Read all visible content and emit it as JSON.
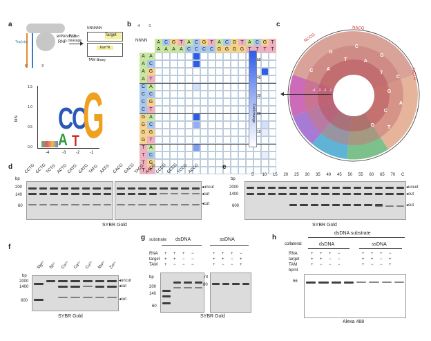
{
  "panels": {
    "a": "a",
    "b": "b",
    "c": "c",
    "d": "d",
    "e": "e",
    "f": "f",
    "g": "g",
    "h": "h"
  },
  "panel_a": {
    "labels": [
      "Trip(sta)",
      "enNovFz3",
      "RNP",
      "in vitro",
      "cleavage",
      "NNNNNN",
      "Target",
      "Kan^R",
      "TAM library",
      "5'",
      "3'"
    ],
    "logo_ylabel": "bits",
    "logo_positions": [
      "-4",
      "-3",
      "-2",
      "-1"
    ],
    "logo_letters": [
      "C",
      "C",
      "G",
      "A",
      "T"
    ],
    "yticks": [
      "0.0",
      "0.5",
      "1.0",
      "1.5"
    ]
  },
  "panel_b": {
    "minus_labels": [
      "-4",
      "-1"
    ],
    "nnnn": "NNNN",
    "top_row1": [
      "A",
      "C",
      "G",
      "T",
      "A",
      "C",
      "G",
      "T",
      "A",
      "C",
      "G",
      "T",
      "A",
      "C",
      "G",
      "T"
    ],
    "top_row2": [
      "A",
      "A",
      "A",
      "A",
      "C",
      "C",
      "C",
      "C",
      "G",
      "G",
      "G",
      "G",
      "T",
      "T",
      "T",
      "T"
    ],
    "left_col1": [
      "A",
      "A",
      "A",
      "A",
      "C",
      "C",
      "C",
      "C",
      "G",
      "G",
      "G",
      "G",
      "T",
      "T",
      "T",
      "T"
    ],
    "left_col2": [
      "A",
      "C",
      "G",
      "T",
      "A",
      "C",
      "G",
      "T",
      "A",
      "C",
      "G",
      "T",
      "A",
      "C",
      "G",
      "T"
    ],
    "colorbar_label": "Fold change",
    "colorbar_ticks": [
      "50",
      "40",
      "30",
      "20",
      "10"
    ]
  },
  "panel_c": {
    "outer_labels": [
      "NCCG",
      "NACG",
      "NCTG"
    ],
    "ring_letters": [
      "C",
      "A",
      "G",
      "T",
      "C",
      "A",
      "G",
      "T",
      "C",
      "G",
      "A",
      "C",
      "T",
      "G"
    ],
    "minus_labels": [
      "-4",
      "-3",
      "-2",
      "-1"
    ]
  },
  "panel_d": {
    "lanes_left": [
      "CCTG",
      "GCTG",
      "TCTG",
      "ACTG",
      "CATG",
      "GATG",
      "TATG",
      "AATG"
    ],
    "lanes_right": [
      "CACG",
      "GACG",
      "TACG",
      "AACG",
      "CCCG",
      "GCCG",
      "TCCG",
      "ACCG"
    ],
    "bp_label": "bp",
    "ladder": [
      "200",
      "140",
      "60"
    ],
    "right_labels": [
      "uncut",
      "cut",
      "cut"
    ],
    "caption": "SYBR Gold"
  },
  "panel_e": {
    "lanes": [
      "5",
      "10",
      "15",
      "20",
      "25",
      "30",
      "35",
      "40",
      "45",
      "50",
      "55",
      "60",
      "65",
      "70",
      "C"
    ],
    "bp_label": "bp",
    "ladder": [
      "2000",
      "1400",
      "600"
    ],
    "right_labels": [
      "uncut",
      "cut",
      "cut"
    ],
    "caption": "SYBR Gold"
  },
  "panel_f": {
    "lanes": [
      "Mg²⁺",
      "Ni²⁺",
      "Co²⁺",
      "Ca²⁺",
      "Cu²⁺",
      "Mn²⁺",
      "Zn²⁺"
    ],
    "bp_label": "bp",
    "ladder": [
      "2000",
      "1400",
      "600"
    ],
    "right_labels": [
      "uncut",
      "cut",
      "cut"
    ],
    "caption": "SYBR Gold"
  },
  "panel_g": {
    "substrate_label": "substrate:",
    "ds": "dsDNA",
    "ss": "ssDNA",
    "row_labels": [
      "RNA",
      "target",
      "TAM"
    ],
    "ds_signs": [
      [
        "+",
        "+",
        "+",
        "−"
      ],
      [
        "+",
        "+",
        "−",
        "−"
      ],
      [
        "+",
        "−",
        "−",
        "−"
      ]
    ],
    "ss_signs": [
      [
        "+",
        "+",
        "+",
        "−"
      ],
      [
        "+",
        "+",
        "−",
        "+"
      ],
      [
        "+",
        "−",
        "−",
        "+"
      ]
    ],
    "bp_label": "bp",
    "nt_label": "nt",
    "ladder_ds": [
      "200",
      "140",
      "60"
    ],
    "ladder_ss": [
      "80"
    ],
    "caption": "SYBR Gold"
  },
  "panel_h": {
    "title": "dsDNA substrate",
    "collateral_label": "collateral:",
    "ds": "dsDNA",
    "ss": "ssDNA",
    "row_labels": [
      "RNA",
      "target",
      "TAM"
    ],
    "ds_signs": [
      [
        "+",
        "+",
        "+",
        "−"
      ],
      [
        "+",
        "+",
        "−",
        "−"
      ],
      [
        "+",
        "−",
        "−",
        "−"
      ]
    ],
    "ss_signs": [
      [
        "+",
        "+",
        "+",
        "−"
      ],
      [
        "+",
        "+",
        "−",
        "+"
      ],
      [
        "+",
        "−",
        "−",
        "+"
      ]
    ],
    "unit_label": "bp/nt",
    "ladder": [
      "56"
    ],
    "caption": "Alexa 488"
  },
  "colors": {
    "A": "#c8e6a0",
    "C": "#a8c8f0",
    "G": "#f5d38a",
    "T": "#f0b0c0",
    "heat_high": "#2f5be6",
    "logo_C": "#2a58b8",
    "logo_G": "#f0a020",
    "logo_A": "#2a9a3a",
    "logo_T": "#d02a2a"
  }
}
